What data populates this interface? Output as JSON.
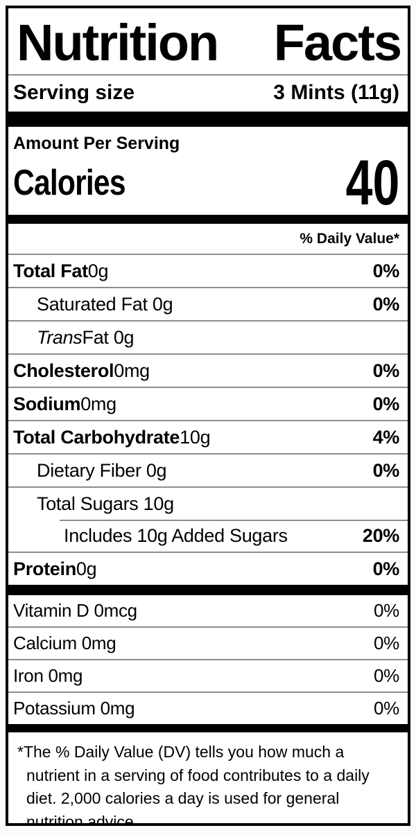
{
  "label": {
    "title_words": [
      "Nutrition",
      "Facts"
    ],
    "serving": {
      "label": "Serving size",
      "value": "3 Mints (11g)"
    },
    "amount_per_serving": "Amount Per Serving",
    "calories": {
      "label": "Calories",
      "value": "40"
    },
    "daily_value_header": "% Daily Value*",
    "nutrients": [
      {
        "parts": [
          {
            "t": "Total Fat",
            "b": true
          },
          {
            "t": " 0g"
          }
        ],
        "dv": "0%",
        "dv_bold": true,
        "indent": 0,
        "divider": "none"
      },
      {
        "parts": [
          {
            "t": "Saturated Fat 0g"
          }
        ],
        "dv": "0%",
        "dv_bold": true,
        "indent": 1,
        "divider": "full"
      },
      {
        "parts": [
          {
            "t": "Trans",
            "i": true
          },
          {
            "t": " Fat 0g"
          }
        ],
        "dv": "",
        "dv_bold": false,
        "indent": 1,
        "divider": "full"
      },
      {
        "parts": [
          {
            "t": "Cholesterol",
            "b": true
          },
          {
            "t": " 0mg"
          }
        ],
        "dv": "0%",
        "dv_bold": true,
        "indent": 0,
        "divider": "full"
      },
      {
        "parts": [
          {
            "t": "Sodium",
            "b": true
          },
          {
            "t": " 0mg"
          }
        ],
        "dv": "0%",
        "dv_bold": true,
        "indent": 0,
        "divider": "full"
      },
      {
        "parts": [
          {
            "t": "Total Carbohydrate",
            "b": true
          },
          {
            "t": " 10g"
          }
        ],
        "dv": "4%",
        "dv_bold": true,
        "indent": 0,
        "divider": "full"
      },
      {
        "parts": [
          {
            "t": "Dietary Fiber 0g"
          }
        ],
        "dv": "0%",
        "dv_bold": true,
        "indent": 1,
        "divider": "full"
      },
      {
        "parts": [
          {
            "t": "Total Sugars 10g"
          }
        ],
        "dv": "",
        "dv_bold": false,
        "indent": 1,
        "divider": "full"
      },
      {
        "parts": [
          {
            "t": "Includes 10g Added Sugars"
          }
        ],
        "dv": "20%",
        "dv_bold": true,
        "indent": 2,
        "divider": "indent"
      },
      {
        "parts": [
          {
            "t": "Protein",
            "b": true
          },
          {
            "t": " 0g"
          }
        ],
        "dv": "0%",
        "dv_bold": true,
        "indent": 0,
        "divider": "full"
      }
    ],
    "vitamins": [
      {
        "parts": [
          {
            "t": "Vitamin D 0mcg"
          }
        ],
        "dv": "0%",
        "dv_bold": false,
        "indent": 0,
        "divider": "none"
      },
      {
        "parts": [
          {
            "t": "Calcium 0mg"
          }
        ],
        "dv": "0%",
        "dv_bold": false,
        "indent": 0,
        "divider": "full"
      },
      {
        "parts": [
          {
            "t": "Iron 0mg"
          }
        ],
        "dv": "0%",
        "dv_bold": false,
        "indent": 0,
        "divider": "full"
      },
      {
        "parts": [
          {
            "t": "Potassium 0mg"
          }
        ],
        "dv": "0%",
        "dv_bold": false,
        "indent": 0,
        "divider": "full"
      }
    ],
    "footnote": "*The % Daily Value (DV) tells you how much a nutrient in a serving of food contributes to a daily diet. 2,000 calories a day is used for general nutrition advice."
  },
  "colors": {
    "border": "#000000",
    "section_bar": "#000000",
    "divider": "#8d8d8d",
    "text": "#000000",
    "background": "#ffffff"
  }
}
